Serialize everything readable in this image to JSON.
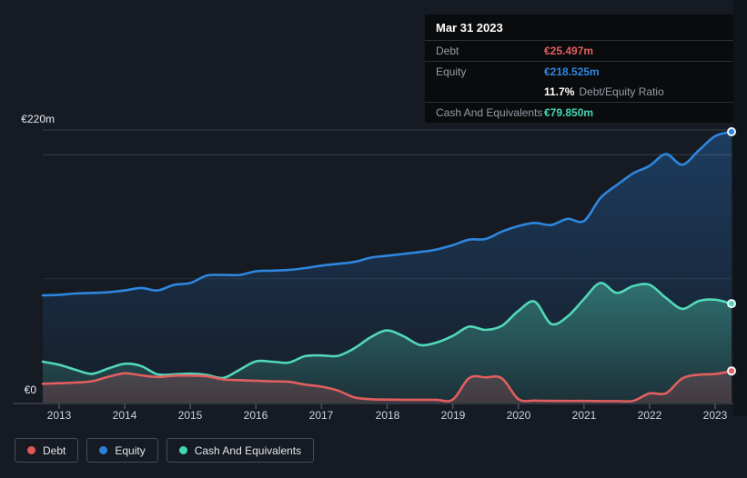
{
  "app": {
    "background": "#151a23"
  },
  "tooltip": {
    "date": "Mar 31 2023",
    "debt_label": "Debt",
    "debt_value": "€25.497m",
    "debt_color": "#e15f5f",
    "equity_label": "Equity",
    "equity_value": "€218.525m",
    "equity_color": "#2e86de",
    "ratio_value": "11.7%",
    "ratio_label": "Debt/Equity Ratio",
    "cash_label": "Cash And Equivalents",
    "cash_value": "€79.850m",
    "cash_color": "#45d6b4"
  },
  "axis": {
    "y_max_label": "€220m",
    "y_zero_label": "€0",
    "x_ticks": [
      "2013",
      "2014",
      "2015",
      "2016",
      "2017",
      "2018",
      "2019",
      "2020",
      "2021",
      "2022",
      "2023"
    ]
  },
  "legend": [
    {
      "label": "Debt",
      "color": "#e15757"
    },
    {
      "label": "Equity",
      "color": "#2980d9"
    },
    {
      "label": "Cash And Equivalents",
      "color": "#43d6b5"
    }
  ],
  "chart_data": {
    "type": "area",
    "currency": "EUR millions",
    "xlim": [
      2012.75,
      2023.25
    ],
    "ylim": [
      0,
      220
    ],
    "y_gridline_values": [
      100,
      200,
      220
    ],
    "y_axis_labels": {
      "0": "€0",
      "220": "€220m"
    },
    "legend_position": "bottom-left",
    "x": [
      2012.75,
      2013.0,
      2013.25,
      2013.5,
      2013.75,
      2014.0,
      2014.25,
      2014.5,
      2014.75,
      2015.0,
      2015.25,
      2015.5,
      2015.75,
      2016.0,
      2016.25,
      2016.5,
      2016.75,
      2017.0,
      2017.25,
      2017.5,
      2017.75,
      2018.0,
      2018.25,
      2018.5,
      2018.75,
      2019.0,
      2019.25,
      2019.5,
      2019.75,
      2020.0,
      2020.25,
      2020.5,
      2020.75,
      2021.0,
      2021.25,
      2021.5,
      2021.75,
      2022.0,
      2022.25,
      2022.5,
      2022.75,
      2023.0,
      2023.25
    ],
    "series": [
      {
        "name": "Debt",
        "color": "#e15f5f",
        "fill": "rgba(228,100,105,0.20)",
        "values": [
          15.2,
          15.6,
          16.1,
          17.2,
          20.8,
          23.6,
          22.0,
          20.7,
          21.7,
          21.8,
          21.2,
          18.7,
          18.1,
          17.6,
          17.1,
          16.8,
          14.5,
          12.8,
          9.7,
          4.2,
          2.7,
          2.4,
          2.3,
          2.3,
          2.3,
          2.4,
          19.8,
          20.3,
          19.5,
          2.8,
          1.6,
          1.4,
          1.3,
          1.3,
          1.2,
          1.2,
          1.4,
          7.4,
          7.5,
          19.5,
          22.5,
          23.0,
          25.497
        ]
      },
      {
        "name": "Equity",
        "color": "#2e86de",
        "fill_top": "rgba(46,134,222,0.32)",
        "fill_bottom": "rgba(46,134,222,0.03)",
        "values": [
          86.5,
          87.0,
          88.0,
          88.5,
          89.0,
          90.5,
          92.5,
          90.5,
          95.0,
          96.5,
          102.5,
          103.0,
          103.0,
          106.0,
          106.5,
          107.0,
          108.5,
          110.5,
          112.0,
          113.5,
          117.0,
          118.5,
          120.0,
          121.5,
          123.5,
          127.0,
          131.5,
          132.0,
          138.0,
          142.5,
          145.0,
          143.3,
          148.3,
          146.5,
          165.0,
          175.5,
          185.0,
          191.0,
          200.5,
          192.0,
          203.5,
          215.0,
          218.525
        ]
      },
      {
        "name": "Cash And Equivalents",
        "color": "#52d8b8",
        "fill_top": "rgba(82,216,184,0.42)",
        "fill_bottom": "rgba(82,216,184,0.10)",
        "values": [
          33.0,
          30.5,
          26.5,
          23.2,
          27.5,
          31.3,
          29.5,
          22.8,
          22.8,
          23.3,
          22.4,
          19.9,
          26.5,
          33.3,
          33.0,
          32.3,
          37.5,
          38.0,
          37.7,
          43.8,
          52.8,
          58.2,
          53.5,
          46.5,
          48.4,
          53.8,
          61.3,
          58.7,
          62.0,
          74.0,
          81.5,
          63.5,
          69.5,
          83.5,
          96.5,
          88.5,
          94.0,
          95.1,
          84.5,
          75.7,
          82.0,
          83.0,
          79.85
        ]
      }
    ],
    "last_point": {
      "date": "Mar 31 2023",
      "debt": 25.497,
      "equity": 218.525,
      "cash_and_equivalents": 79.85,
      "debt_equity_ratio": "11.7%"
    }
  }
}
